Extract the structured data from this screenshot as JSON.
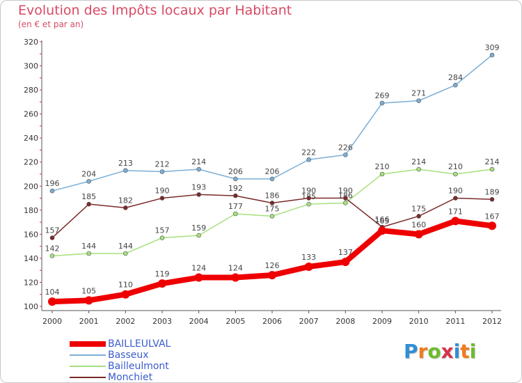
{
  "header": {
    "title": "Evolution des Impôts locaux par Habitant",
    "subtitle": "(en € et par an)"
  },
  "logo": {
    "letters": [
      "P",
      "r",
      "o",
      "x",
      "i",
      "t",
      "i"
    ],
    "colors": [
      "#2f8fd6",
      "#f07c1c",
      "#6dbb2c",
      "#d8324a",
      "#2f8fd6",
      "#f07c1c",
      "#6dbb2c"
    ]
  },
  "chart_data": {
    "type": "line",
    "x": [
      2000,
      2001,
      2002,
      2003,
      2004,
      2005,
      2006,
      2007,
      2008,
      2009,
      2010,
      2011,
      2012
    ],
    "ylim": [
      100,
      320
    ],
    "yticks": [
      100,
      120,
      140,
      160,
      180,
      200,
      220,
      240,
      260,
      280,
      300,
      320
    ],
    "grid": false,
    "legend_position": "bottom-left",
    "series": [
      {
        "name": "BAILLEULVAL",
        "color": "#ee0000",
        "values": [
          104,
          105,
          110,
          119,
          124,
          124,
          126,
          133,
          137,
          163,
          160,
          171,
          167
        ]
      },
      {
        "name": "Basseux",
        "color": "#7aaed6",
        "values": [
          196,
          204,
          213,
          212,
          214,
          206,
          206,
          222,
          226,
          269,
          271,
          284,
          309
        ]
      },
      {
        "name": "Bailleulmont",
        "color": "#a6e07c",
        "values": [
          142,
          144,
          144,
          157,
          159,
          177,
          175,
          185,
          186,
          210,
          214,
          210,
          214
        ]
      },
      {
        "name": "Monchiet",
        "color": "#7a2a2a",
        "values": [
          157,
          185,
          182,
          190,
          193,
          192,
          186,
          190,
          190,
          166,
          175,
          190,
          189
        ]
      }
    ]
  }
}
